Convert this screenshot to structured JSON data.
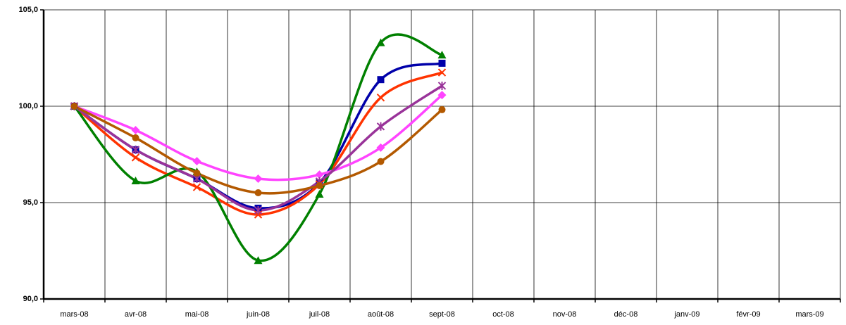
{
  "chart_data": {
    "type": "line",
    "categories": [
      "mars-08",
      "avr-08",
      "mai-08",
      "juin-08",
      "juil-08",
      "août-08",
      "sept-08",
      "oct-08",
      "nov-08",
      "déc-08",
      "janv-09",
      "févr-09",
      "mars-09"
    ],
    "series": [
      {
        "color": "#00a",
        "marker": "square",
        "values": [
          100,
          97.74,
          96.24,
          94.71,
          96.02,
          101.38,
          102.23,
          null,
          null,
          null,
          null,
          null,
          null
        ]
      },
      {
        "color": "#ff3300",
        "marker": "x",
        "values": [
          100,
          97.34,
          95.8,
          94.38,
          95.95,
          100.45,
          101.75,
          null,
          null,
          null,
          null,
          null,
          null
        ]
      },
      {
        "color": "#008000",
        "marker": "triangle",
        "values": [
          100,
          96.13,
          96.6,
          92.0,
          95.44,
          103.3,
          102.66,
          null,
          null,
          null,
          null,
          null,
          null
        ]
      },
      {
        "color": "#ff44ff",
        "marker": "diamond",
        "values": [
          100,
          98.76,
          97.15,
          96.24,
          96.45,
          97.85,
          100.58,
          null,
          null,
          null,
          null,
          null,
          null
        ]
      },
      {
        "color": "#993399",
        "marker": "asterisk",
        "values": [
          100,
          97.74,
          96.24,
          94.6,
          96.1,
          98.95,
          101.06,
          null,
          null,
          null,
          null,
          null,
          null
        ]
      },
      {
        "color": "#b35900",
        "marker": "circle",
        "values": [
          100,
          98.36,
          96.53,
          95.51,
          95.88,
          97.13,
          99.82,
          null,
          null,
          null,
          null,
          null,
          null
        ]
      }
    ],
    "ylim": [
      90,
      105
    ],
    "yticks": [
      {
        "value": 90,
        "label": "90,0"
      },
      {
        "value": 95,
        "label": "95,0"
      },
      {
        "value": 100,
        "label": "100,0"
      },
      {
        "value": 105,
        "label": "105,0"
      }
    ],
    "grid": true
  }
}
